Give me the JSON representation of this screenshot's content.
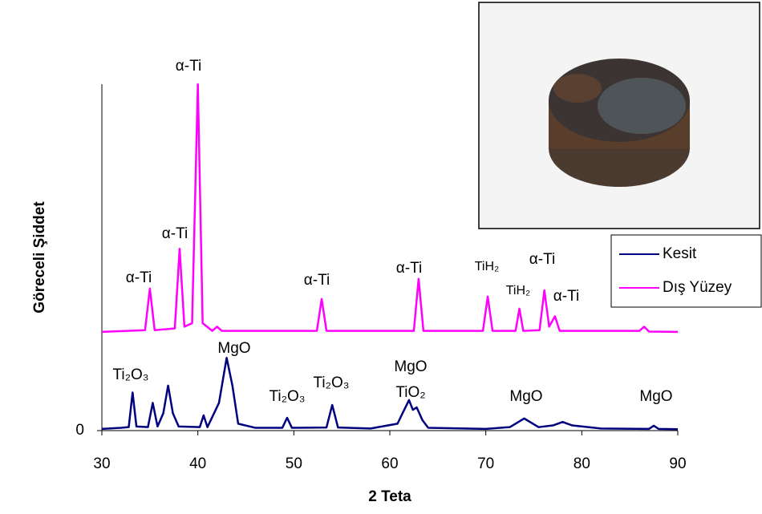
{
  "chart_data": {
    "type": "line",
    "xlabel": "2 Teta",
    "ylabel": "Göreceli Şiddet",
    "xlim": [
      30,
      90
    ],
    "xticks": [
      30,
      40,
      50,
      60,
      70,
      80,
      90
    ],
    "ylim": [
      0,
      100
    ],
    "yticks": [
      0
    ],
    "legend": "upper right",
    "series": [
      {
        "name": "Kesit",
        "color": "#000080",
        "x": [
          30,
          32,
          32.8,
          33.2,
          33.6,
          34.8,
          35.3,
          35.8,
          36.4,
          36.9,
          37.4,
          38,
          40.2,
          40.6,
          41,
          42.2,
          43,
          43.6,
          44.2,
          46,
          48.8,
          49.3,
          49.8,
          53.4,
          54,
          54.6,
          58,
          60.8,
          61.5,
          62,
          62.4,
          62.8,
          63.4,
          64,
          70,
          72.5,
          74,
          75.5,
          77,
          78,
          79,
          82,
          87,
          87.5,
          88,
          90
        ],
        "values": [
          0.5,
          0.8,
          1,
          11,
          1.2,
          1,
          8,
          1.2,
          5,
          13,
          5,
          1.2,
          1,
          4.4,
          1,
          8,
          21,
          13,
          2,
          0.8,
          0.8,
          3.7,
          0.8,
          0.9,
          7.4,
          0.9,
          0.6,
          2,
          6,
          8.8,
          6,
          6.7,
          3,
          0.8,
          0.5,
          1,
          3.5,
          1,
          1.5,
          2.5,
          1.5,
          0.6,
          0.5,
          1.4,
          0.5,
          0.4
        ]
      },
      {
        "name": "Dış Yüzey",
        "color": "#ff00ff",
        "x": [
          30,
          34.5,
          35,
          35.5,
          37.6,
          38.1,
          38.6,
          39.4,
          40,
          40.5,
          41.5,
          42,
          42.5,
          52.4,
          52.9,
          53.4,
          62.5,
          63,
          63.5,
          69.7,
          70.2,
          70.7,
          73.1,
          73.5,
          73.9,
          75.6,
          76.1,
          76.6,
          77.2,
          77.7,
          86,
          86.5,
          87,
          90
        ],
        "values": [
          28.5,
          29,
          41,
          29,
          29.5,
          52.5,
          30,
          31,
          100,
          31,
          28.8,
          30,
          28.8,
          28.8,
          38,
          28.8,
          28.8,
          43.8,
          28.8,
          28.8,
          38.7,
          28.8,
          28.8,
          35.2,
          28.8,
          29,
          40.5,
          30,
          33,
          28.8,
          28.8,
          30,
          28.6,
          28.5
        ]
      }
    ],
    "annotations": [
      "α-Ti",
      "α-Ti",
      "α-Ti",
      "α-Ti",
      "α-Ti",
      "TiH₂",
      "TiH₂",
      "α-Ti",
      "α-Ti",
      "Ti₂O₃",
      "MgO",
      "Ti₂O₃",
      "Ti₂O₃",
      "MgO",
      "TiO₂",
      "MgO",
      "MgO"
    ]
  }
}
